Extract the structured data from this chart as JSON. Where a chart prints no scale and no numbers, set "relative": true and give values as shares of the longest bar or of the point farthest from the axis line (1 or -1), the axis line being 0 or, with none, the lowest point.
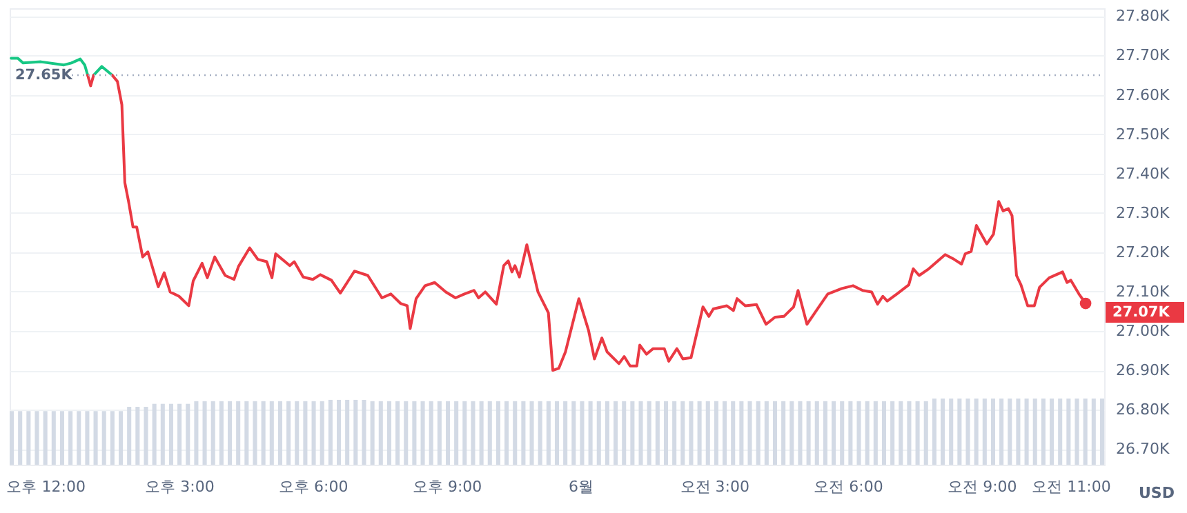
{
  "chart_data": [
    {
      "type": "line",
      "xlim": [
        "--05-31T11:12",
        "--06-01T11:45"
      ],
      "ylim": [
        26.66,
        27.82
      ],
      "xticks": [
        {
          "value": "--05-31T12:00",
          "label": "오후 12:00"
        },
        {
          "value": "--05-31T15:00",
          "label": "오후 3:00"
        },
        {
          "value": "--05-31T18:00",
          "label": "오후 6:00"
        },
        {
          "value": "--05-31T21:00",
          "label": "오후 9:00"
        },
        {
          "value": "--06-01T00:00",
          "label": "6월"
        },
        {
          "value": "--06-01T03:00",
          "label": "오전 3:00"
        },
        {
          "value": "--06-01T06:00",
          "label": "오전 6:00"
        },
        {
          "value": "--06-01T09:00",
          "label": "오전 9:00"
        },
        {
          "value": "--06-01T11:00",
          "label": "오전 11:00"
        }
      ],
      "yticks": [
        {
          "value": 26.7,
          "label": "26.70K"
        },
        {
          "value": 26.8,
          "label": "26.80K"
        },
        {
          "value": 26.9,
          "label": "26.90K"
        },
        {
          "value": 27.0,
          "label": "27.00K"
        },
        {
          "value": 27.1,
          "label": "27.10K"
        },
        {
          "value": 27.2,
          "label": "27.20K"
        },
        {
          "value": 27.3,
          "label": "27.30K"
        },
        {
          "value": 27.4,
          "label": "27.40K"
        },
        {
          "value": 27.5,
          "label": "27.50K"
        },
        {
          "value": 27.6,
          "label": "27.60K"
        },
        {
          "value": 27.7,
          "label": "27.70K"
        },
        {
          "value": 27.8,
          "label": "27.80K"
        }
      ],
      "grid": "y",
      "marker": "none",
      "line_style": "solid",
      "ref_lines": [
        {
          "axis": "y",
          "value": 27.65,
          "label": "27.65K",
          "color": "#a6b0c3",
          "line_style": "dotted"
        }
      ],
      "annotations": [
        {
          "text": "27.07K",
          "x": "--06-01T11:20",
          "y": 27.07
        },
        "USD"
      ],
      "series": [
        {
          "color": "#16c784",
          "x": [
            "--05-31T11:14",
            "--05-31T11:23",
            "--05-31T11:30",
            "--05-31T11:54",
            "--05-31T12:25",
            "--05-31T12:35",
            "--05-31T12:47",
            "--05-31T12:53",
            "--05-31T12:57",
            "--05-31T12:59",
            "--05-31T13:05",
            "--05-31T13:16",
            "--05-31T13:30"
          ],
          "values": [
            27.693,
            27.693,
            27.681,
            27.684,
            27.676,
            27.681,
            27.691,
            27.676,
            27.65,
            null,
            27.65,
            27.672,
            27.65
          ]
        },
        {
          "color": "#ea3943",
          "x": [
            "--05-31T12:57",
            "--05-31T13:01",
            "--05-31T13:05",
            "--05-31T13:12",
            "--05-31T13:30",
            "--05-31T13:37",
            "--05-31T13:43",
            "--05-31T13:47",
            "--05-31T13:52",
            "--05-31T13:58",
            "--05-31T14:03",
            "--05-31T14:11",
            "--05-31T14:18",
            "--05-31T14:32",
            "--05-31T14:40",
            "--05-31T14:48",
            "--05-31T15:00",
            "--05-31T15:13",
            "--05-31T15:19",
            "--05-31T15:31",
            "--05-31T15:38",
            "--05-31T15:48",
            "--05-31T16:02",
            "--05-31T16:14",
            "--05-31T16:20",
            "--05-31T16:35",
            "--05-31T16:46",
            "--05-31T16:58",
            "--05-31T17:05",
            "--05-31T17:10",
            "--05-31T17:29",
            "--05-31T17:35",
            "--05-31T17:47",
            "--05-31T18:00",
            "--05-31T18:10",
            "--05-31T18:25",
            "--05-31T18:37",
            "--05-31T18:56",
            "--05-31T19:14",
            "--05-31T19:33",
            "--05-31T19:45",
            "--05-31T19:58",
            "--05-31T20:07",
            "--05-31T20:11",
            "--05-31T20:19",
            "--05-31T20:31",
            "--05-31T20:44",
            "--05-31T20:59",
            "--05-31T21:12",
            "--05-31T21:24",
            "--05-31T21:37",
            "--05-31T21:43",
            "--05-31T21:52",
            "--05-31T22:07",
            "--05-31T22:17",
            "--05-31T22:23",
            "--05-31T22:28",
            "--05-31T22:32",
            "--05-31T22:38",
            "--05-31T22:48",
            "--05-31T23:03",
            "--05-31T23:17",
            "--05-31T23:23",
            "--05-31T23:31",
            "--05-31T23:40",
            "--05-31T23:58",
            "--06-01T00:11",
            "--06-01T00:19",
            "--06-01T00:29",
            "--06-01T00:36",
            "--06-01T00:52",
            "--06-01T00:59",
            "--06-01T01:07",
            "--06-01T01:16",
            "--06-01T01:20",
            "--06-01T01:29",
            "--06-01T01:38",
            "--06-01T01:53",
            "--06-01T01:59",
            "--06-01T02:10",
            "--06-01T02:18",
            "--06-01T02:29",
            "--06-01T02:45",
            "--06-01T02:53",
            "--06-01T02:59",
            "--06-01T03:17",
            "--06-01T03:26",
            "--06-01T03:31",
            "--06-01T03:42",
            "--06-01T03:57",
            "--06-01T04:10",
            "--06-01T04:22",
            "--06-01T04:34",
            "--06-01T04:47",
            "--06-01T04:53",
            "--06-01T05:05",
            "--06-01T05:21",
            "--06-01T05:33",
            "--06-01T05:52",
            "--06-01T06:07",
            "--06-01T06:20",
            "--06-01T06:32",
            "--06-01T06:40",
            "--06-01T06:47",
            "--06-01T06:53",
            "--06-01T07:06",
            "--06-01T07:22",
            "--06-01T07:28",
            "--06-01T07:36",
            "--06-01T07:49",
            "--06-01T08:11",
            "--06-01T08:23",
            "--06-01T08:33",
            "--06-01T08:38",
            "--06-01T08:46",
            "--06-01T08:53",
            "--06-01T09:07",
            "--06-01T09:16",
            "--06-01T09:23",
            "--06-01T09:29",
            "--06-01T09:36",
            "--06-01T09:41",
            "--06-01T09:47",
            "--06-01T09:53",
            "--06-01T10:02",
            "--06-01T10:11",
            "--06-01T10:18",
            "--06-01T10:31",
            "--06-01T10:49",
            "--06-01T10:55",
            "--06-01T11:00",
            "--06-01T11:11",
            "--06-01T11:20"
          ],
          "values": [
            27.65,
            27.623,
            27.65,
            null,
            27.65,
            27.634,
            27.575,
            27.377,
            27.329,
            27.264,
            27.264,
            27.188,
            27.201,
            27.112,
            27.148,
            27.099,
            27.088,
            27.064,
            27.127,
            27.172,
            27.135,
            27.188,
            27.141,
            27.131,
            27.164,
            27.211,
            27.182,
            27.176,
            27.135,
            27.196,
            27.166,
            27.176,
            27.137,
            27.131,
            27.143,
            27.129,
            27.096,
            27.152,
            27.141,
            27.084,
            27.094,
            27.07,
            27.064,
            27.006,
            27.082,
            27.115,
            27.123,
            27.099,
            27.084,
            27.094,
            27.103,
            27.084,
            27.099,
            27.068,
            27.166,
            27.178,
            27.15,
            27.166,
            27.137,
            27.219,
            27.099,
            27.046,
            26.9,
            26.905,
            26.947,
            27.082,
            27.002,
            26.929,
            26.982,
            26.947,
            26.917,
            26.935,
            26.911,
            26.911,
            26.964,
            26.941,
            26.955,
            26.955,
            26.923,
            26.955,
            26.929,
            26.932,
            27.061,
            27.037,
            27.056,
            27.064,
            27.052,
            27.082,
            27.064,
            27.067,
            27.017,
            27.035,
            27.037,
            27.061,
            27.103,
            27.017,
            27.061,
            27.094,
            27.108,
            27.115,
            27.103,
            27.099,
            27.068,
            27.088,
            27.076,
            27.094,
            27.117,
            27.158,
            27.141,
            27.158,
            27.194,
            27.182,
            27.17,
            27.196,
            27.202,
            27.268,
            27.221,
            27.246,
            27.329,
            27.305,
            27.311,
            27.293,
            27.141,
            27.117,
            27.064,
            27.064,
            27.111,
            27.135,
            27.15,
            27.123,
            27.129,
            27.094,
            27.07
          ]
        }
      ]
    },
    {
      "type": "bar",
      "relative": true,
      "color": "#d3dae5",
      "categories": [
        null,
        null,
        null,
        null,
        null,
        null,
        null,
        null,
        null,
        null,
        null,
        null,
        null,
        null,
        null,
        null,
        null,
        null,
        null,
        null,
        null,
        null,
        null,
        null,
        null,
        null,
        null,
        null,
        null,
        null,
        null,
        null,
        null,
        null,
        null,
        null,
        null,
        null,
        null,
        null,
        null,
        null,
        null,
        null,
        null,
        null,
        null,
        null,
        null,
        null,
        null,
        null,
        null,
        null,
        null,
        null,
        null,
        null,
        null,
        null,
        null,
        null,
        null,
        null,
        null,
        null,
        null,
        null,
        null,
        null,
        null,
        null,
        null,
        null,
        null,
        null,
        null,
        null,
        null,
        null,
        null,
        null,
        null,
        null,
        null,
        null,
        null,
        null,
        null,
        null,
        null,
        null,
        null,
        null,
        null,
        null,
        null,
        null,
        null,
        null,
        null,
        null,
        null,
        null,
        null,
        null,
        null,
        null,
        null,
        null,
        null,
        null,
        null,
        null,
        null,
        null,
        null,
        null,
        null,
        null,
        null,
        null,
        null,
        null,
        null,
        null,
        null,
        null,
        null,
        null,
        null
      ],
      "values": [
        0.81,
        0.81,
        0.81,
        0.81,
        0.81,
        0.81,
        0.81,
        0.81,
        0.81,
        0.81,
        0.81,
        0.81,
        0.81,
        0.81,
        0.875,
        0.875,
        0.875,
        0.92,
        0.92,
        0.92,
        0.92,
        0.92,
        0.96,
        0.96,
        0.96,
        0.96,
        0.96,
        0.96,
        0.96,
        0.96,
        0.96,
        0.96,
        0.96,
        0.96,
        0.96,
        0.96,
        0.96,
        0.96,
        0.98,
        0.98,
        0.98,
        0.98,
        0.98,
        0.96,
        0.96,
        0.96,
        0.96,
        0.96,
        0.96,
        0.96,
        0.96,
        0.96,
        0.96,
        0.96,
        0.96,
        0.96,
        0.96,
        0.96,
        0.96,
        0.96,
        0.96,
        0.96,
        0.96,
        0.96,
        0.96,
        0.96,
        0.96,
        0.96,
        0.96,
        0.96,
        0.96,
        0.96,
        0.96,
        0.96,
        0.96,
        0.96,
        0.96,
        0.96,
        0.96,
        0.96,
        0.96,
        0.96,
        0.96,
        0.96,
        0.96,
        0.96,
        0.96,
        0.96,
        0.96,
        0.96,
        0.96,
        0.96,
        0.96,
        0.96,
        0.96,
        0.96,
        0.96,
        0.96,
        0.96,
        0.96,
        0.96,
        0.96,
        0.96,
        0.96,
        0.96,
        0.96,
        0.96,
        0.96,
        0.96,
        0.96,
        1,
        1,
        1,
        1,
        1,
        1,
        1,
        1,
        1,
        1,
        1,
        1,
        1,
        1,
        1,
        1,
        1,
        1,
        1,
        1,
        1
      ]
    }
  ]
}
